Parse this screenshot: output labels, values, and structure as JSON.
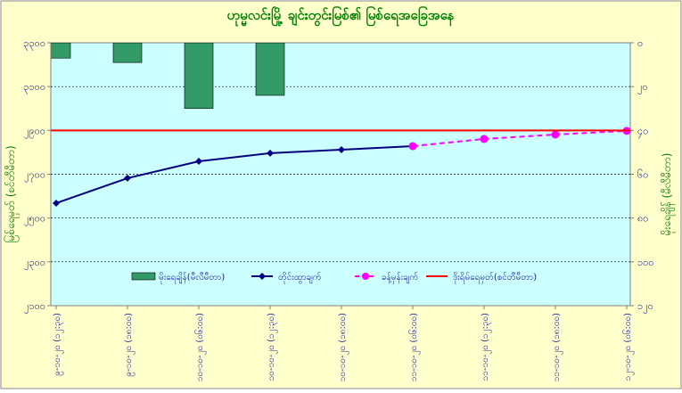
{
  "chart_data": {
    "type": "combo",
    "title": "ဟုမ္မလင်းမြို့ ချင်းတွင်းမြစ်၏ မြစ်ရေအခြေအနေ",
    "ylabel": "မြစ်ရေမှတ် (စင်တီမီတာ)",
    "y2label": "မိုးရေချိန် (မီလီမီတာ)",
    "categories": [
      "၉-၁၀-၂၀ (၁၂:၃၀)",
      "၉-၁၀-၂၀ (၁၈:၀၀)",
      "၁၀-၁၀-၂၀ (၀၆:၀၀)",
      "၁၀-၁၀-၂၀ (၁၂:၃၀)",
      "၁၀-၁၀-၂၀ (၁၈:၀၀)",
      "၁၁-၁၀-၂၀ (၀၆:၀၀)",
      "၁၁-၁၀-၂၀ (၁၂:၃၀)",
      "၁၁-၁၀-၂၀ (၁၈:၀၀)",
      "၁၂-၁၀-၂၀ (၀၆:၀၀)"
    ],
    "ylim": [
      2100,
      3300
    ],
    "yticks": [
      {
        "value": 2100,
        "label": "၂၁၀၀"
      },
      {
        "value": 2300,
        "label": "၂၃၀၀"
      },
      {
        "value": 2500,
        "label": "၂၅၀၀"
      },
      {
        "value": 2700,
        "label": "၂၇၀၀"
      },
      {
        "value": 2900,
        "label": "၂၉၀၀"
      },
      {
        "value": 3100,
        "label": "၃၁၀၀"
      },
      {
        "value": 3300,
        "label": "၃၃၀၀"
      }
    ],
    "y2lim": [
      120,
      0
    ],
    "y2ticks": [
      {
        "value": 0,
        "label": "၀"
      },
      {
        "value": 20,
        "label": "၂၀"
      },
      {
        "value": 40,
        "label": "၄၀"
      },
      {
        "value": 60,
        "label": "၆၀"
      },
      {
        "value": 80,
        "label": "၈၀"
      },
      {
        "value": 100,
        "label": "၁၀၀"
      },
      {
        "value": 120,
        "label": "၁၂၀"
      }
    ],
    "grid": true,
    "legend": "bottom",
    "series": [
      {
        "name": "မိုးရေချိန်(မီလီမီတာ)",
        "kind": "bar",
        "axis": "y2",
        "color": "#339966",
        "values": [
          7,
          9,
          30,
          24,
          null,
          null,
          null,
          null,
          null
        ]
      },
      {
        "name": "တိုင်းထွာချက်",
        "kind": "line",
        "color": "#000080",
        "values": [
          2568,
          2682,
          2759,
          2796,
          2812,
          2828,
          null,
          null,
          null
        ]
      },
      {
        "name": "ခန့်မှန်းချက်",
        "kind": "dashed",
        "color": "#ff00ff",
        "values": [
          null,
          null,
          null,
          null,
          null,
          2828,
          2861,
          2881,
          2898
        ]
      },
      {
        "name": "ဒိုးရိမ်ရေမှတ်(စင်တီမီတာ)",
        "kind": "rule",
        "color": "#ff0000",
        "values": [
          2900,
          2900,
          2900,
          2900,
          2900,
          2900,
          2900,
          2900,
          2900
        ]
      }
    ]
  }
}
